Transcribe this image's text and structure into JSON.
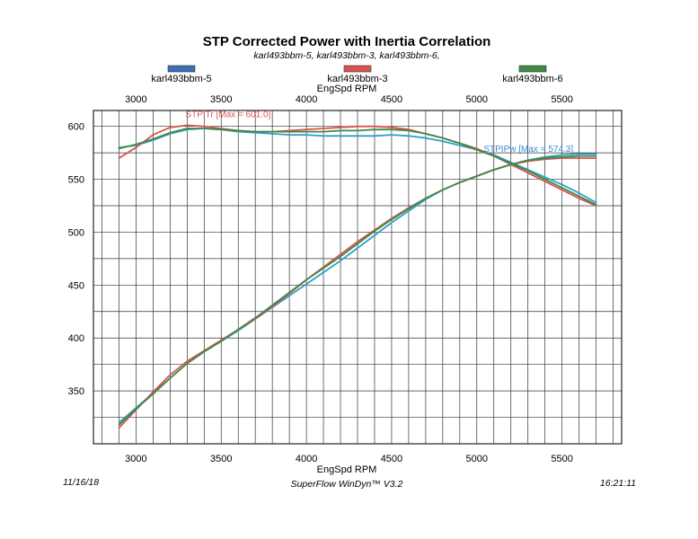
{
  "chart_data": {
    "type": "line",
    "title": "STP Corrected Power with Inertia Correlation",
    "subtitle": "karl493bbm-5, karl493bbm-3, karl493bbm-6,",
    "xlabel_top": "EngSpd RPM",
    "xlabel_bottom": "EngSpd RPM",
    "xlim": [
      2750,
      5850
    ],
    "ylim": [
      300,
      615
    ],
    "x_ticks": [
      3000,
      3500,
      4000,
      4500,
      5000,
      5500
    ],
    "y_ticks": [
      350,
      400,
      450,
      500,
      550,
      600
    ],
    "grid": true,
    "legend_position": "top",
    "legend": [
      {
        "name": "karl493bbm-5",
        "color": "#3b6fb6"
      },
      {
        "name": "karl493bbm-3",
        "color": "#d9534f"
      },
      {
        "name": "karl493bbm-6",
        "color": "#3f8a45"
      }
    ],
    "annotations": [
      {
        "text": "STPITr [Max = 601.0]",
        "color": "#d9534f"
      },
      {
        "text": "STPIPw [Max = 574.3]",
        "color": "#3b8ed8"
      }
    ],
    "series": [
      {
        "name": "karl493bbm-5 STPITr",
        "color": "#2f9fc8",
        "x": [
          2900,
          3000,
          3100,
          3200,
          3300,
          3400,
          3500,
          3600,
          3700,
          3800,
          3900,
          4000,
          4100,
          4200,
          4300,
          4400,
          4500,
          4600,
          4700,
          4800,
          4900,
          5000,
          5100,
          5200,
          5300,
          5400,
          5500,
          5600,
          5700
        ],
        "y": [
          580,
          582,
          587,
          593,
          597,
          598,
          597,
          595,
          594,
          593,
          592,
          592,
          591,
          591,
          591,
          591,
          592,
          591,
          589,
          586,
          582,
          578,
          573,
          566,
          559,
          552,
          545,
          537,
          528
        ]
      },
      {
        "name": "karl493bbm-3 STPITr",
        "color": "#d9534f",
        "x": [
          2900,
          3000,
          3100,
          3200,
          3300,
          3400,
          3500,
          3600,
          3700,
          3800,
          3900,
          4000,
          4100,
          4200,
          4300,
          4400,
          4500,
          4600,
          4700,
          4800,
          4900,
          5000,
          5100,
          5200,
          5300,
          5400,
          5500,
          5600,
          5700
        ],
        "y": [
          570,
          580,
          592,
          599,
          601,
          600,
          598,
          596,
          595,
          595,
          596,
          597,
          598,
          599,
          600,
          600,
          599,
          597,
          593,
          589,
          584,
          579,
          572,
          564,
          556,
          548,
          540,
          532,
          525
        ]
      },
      {
        "name": "karl493bbm-6 STPITr",
        "color": "#3f8a45",
        "x": [
          2900,
          3000,
          3100,
          3200,
          3300,
          3400,
          3500,
          3600,
          3700,
          3800,
          3900,
          4000,
          4100,
          4200,
          4300,
          4400,
          4500,
          4600,
          4700,
          4800,
          4900,
          5000,
          5100,
          5200,
          5300,
          5400,
          5500,
          5600,
          5700
        ],
        "y": [
          579,
          583,
          588,
          594,
          598,
          598,
          597,
          596,
          595,
          595,
          595,
          595,
          595,
          596,
          596,
          597,
          597,
          596,
          593,
          589,
          584,
          578,
          572,
          565,
          558,
          550,
          542,
          534,
          526
        ]
      },
      {
        "name": "karl493bbm-5 STPIPw",
        "color": "#2f9fc8",
        "x": [
          2900,
          3000,
          3100,
          3200,
          3300,
          3400,
          3500,
          3600,
          3700,
          3800,
          3900,
          4000,
          4100,
          4200,
          4300,
          4400,
          4500,
          4600,
          4700,
          4800,
          4900,
          5000,
          5100,
          5200,
          5300,
          5400,
          5500,
          5600,
          5700
        ],
        "y": [
          320,
          334,
          348,
          362,
          376,
          387,
          397,
          407,
          418,
          429,
          440,
          451,
          462,
          473,
          485,
          497,
          509,
          520,
          531,
          540,
          547,
          553,
          559,
          564,
          568,
          571,
          573,
          574,
          574
        ]
      },
      {
        "name": "karl493bbm-3 STPIPw",
        "color": "#d9534f",
        "x": [
          2900,
          3000,
          3100,
          3200,
          3300,
          3400,
          3500,
          3600,
          3700,
          3800,
          3900,
          4000,
          4100,
          4200,
          4300,
          4400,
          4500,
          4600,
          4700,
          4800,
          4900,
          5000,
          5100,
          5200,
          5300,
          5400,
          5500,
          5600,
          5700
        ],
        "y": [
          315,
          332,
          349,
          365,
          378,
          388,
          398,
          408,
          418,
          430,
          442,
          455,
          467,
          479,
          491,
          502,
          513,
          523,
          532,
          540,
          547,
          553,
          559,
          564,
          567,
          569,
          570,
          570,
          570
        ]
      },
      {
        "name": "karl493bbm-6 STPIPw",
        "color": "#3f8a45",
        "x": [
          2900,
          3000,
          3100,
          3200,
          3300,
          3400,
          3500,
          3600,
          3700,
          3800,
          3900,
          4000,
          4100,
          4200,
          4300,
          4400,
          4500,
          4600,
          4700,
          4800,
          4900,
          5000,
          5100,
          5200,
          5300,
          5400,
          5500,
          5600,
          5700
        ],
        "y": [
          318,
          333,
          347,
          362,
          376,
          387,
          397,
          408,
          419,
          431,
          443,
          455,
          466,
          477,
          489,
          501,
          512,
          522,
          532,
          540,
          547,
          553,
          559,
          564,
          568,
          570,
          571,
          572,
          572
        ]
      }
    ]
  },
  "footer": {
    "date": "11/16/18",
    "software": "SuperFlow WinDyn™ V3.2",
    "time": "16:21:11"
  }
}
